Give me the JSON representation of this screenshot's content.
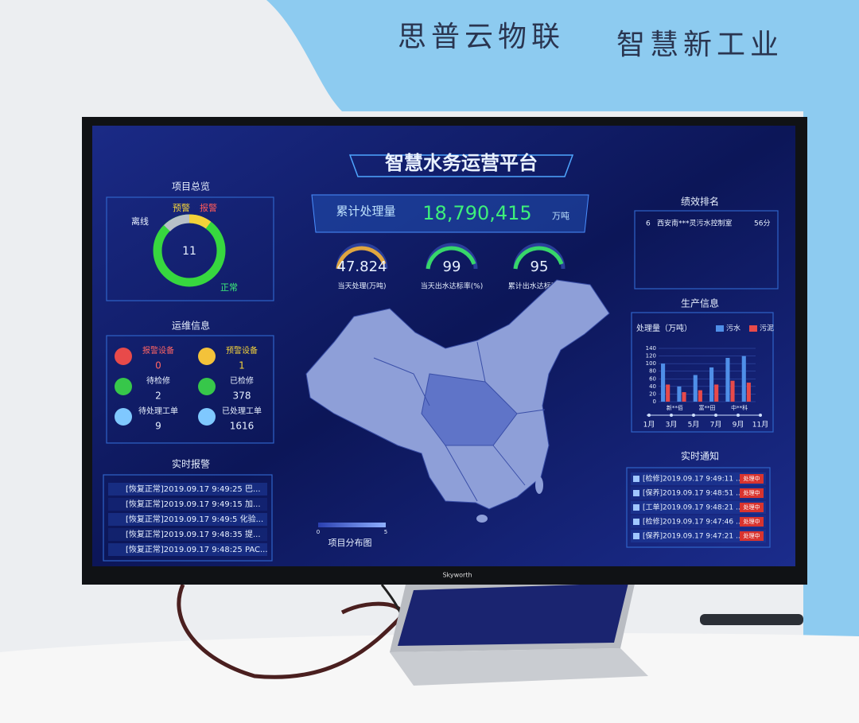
{
  "banner": {
    "left": "思普云物联",
    "right": "智慧新工业"
  },
  "brand": "Skyworth",
  "dashboard": {
    "title": "智慧水务运营平台",
    "overview": {
      "title": "项目总览",
      "total": 11,
      "warning": "预警",
      "alarm": "报警",
      "offline": "离线",
      "normal": "正常"
    },
    "total_processed": {
      "label": "累计处理量",
      "value": "18,790,415",
      "unit": "万吨"
    },
    "gauges": [
      {
        "value": 47.824,
        "label": "当天处理(万吨)"
      },
      {
        "value": 99,
        "label": "当天出水达标率(%)"
      },
      {
        "value": 95,
        "label": "累计出水达标率(%)"
      }
    ],
    "ops": {
      "title": "运维信息",
      "items": [
        {
          "label": "报警设备",
          "value": 0
        },
        {
          "label": "预警设备",
          "value": 1
        },
        {
          "label": "待检修",
          "value": 2
        },
        {
          "label": "已检修",
          "value": 378
        },
        {
          "label": "待处理工单",
          "value": 9
        },
        {
          "label": "已处理工单",
          "value": 1616
        }
      ]
    },
    "alarms": {
      "title": "实时报警",
      "rows": [
        "[恢复正常]2019.09.17 9:49:25 巴...",
        "[恢复正常]2019.09.17 9:49:15 加...",
        "[恢复正常]2019.09.17 9:49:5 化验...",
        "[恢复正常]2019.09.17 9:48:35 提...",
        "[恢复正常]2019.09.17 9:48:25 PAC..."
      ]
    },
    "map": {
      "caption": "项目分布图",
      "legend": [
        0,
        5
      ]
    },
    "ranking": {
      "title": "绩效排名",
      "rank": 6,
      "name": "西安南***灵污水控制室",
      "score": "56分"
    },
    "production": {
      "title": "生产信息",
      "axis_title": "处理量（万吨）",
      "categories": [
        "1月",
        null,
        "3月",
        null,
        "5月",
        null
      ],
      "month_labels": [
        "1月",
        "3月",
        "5月",
        "7月",
        "9月",
        "11月"
      ],
      "station_labels": [
        "新**佰",
        "富**田",
        "中**科"
      ],
      "series": [
        {
          "name": "污水",
          "color": "#4f8fe8",
          "values": [
            100,
            40,
            70,
            90,
            115,
            120
          ]
        },
        {
          "name": "污泥",
          "color": "#e84a4a",
          "values": [
            45,
            25,
            30,
            45,
            55,
            50
          ]
        }
      ],
      "ylim": [
        0,
        140
      ],
      "yticks": [
        0,
        20,
        40,
        60,
        80,
        100,
        120,
        140
      ]
    },
    "notices": {
      "title": "实时通知",
      "rows": [
        {
          "text": "[检修]2019.09.17 9:49:11 ...",
          "status": "处理中"
        },
        {
          "text": "[保养]2019.09.17 9:48:51 ...",
          "status": "处理中"
        },
        {
          "text": "[工单]2019.09.17 9:48:21 ...",
          "status": "处理中"
        },
        {
          "text": "[检修]2019.09.17 9:47:46 ...",
          "status": "处理中"
        },
        {
          "text": "[保养]2019.09.17 9:47:21 ...",
          "status": "处理中"
        }
      ]
    }
  }
}
